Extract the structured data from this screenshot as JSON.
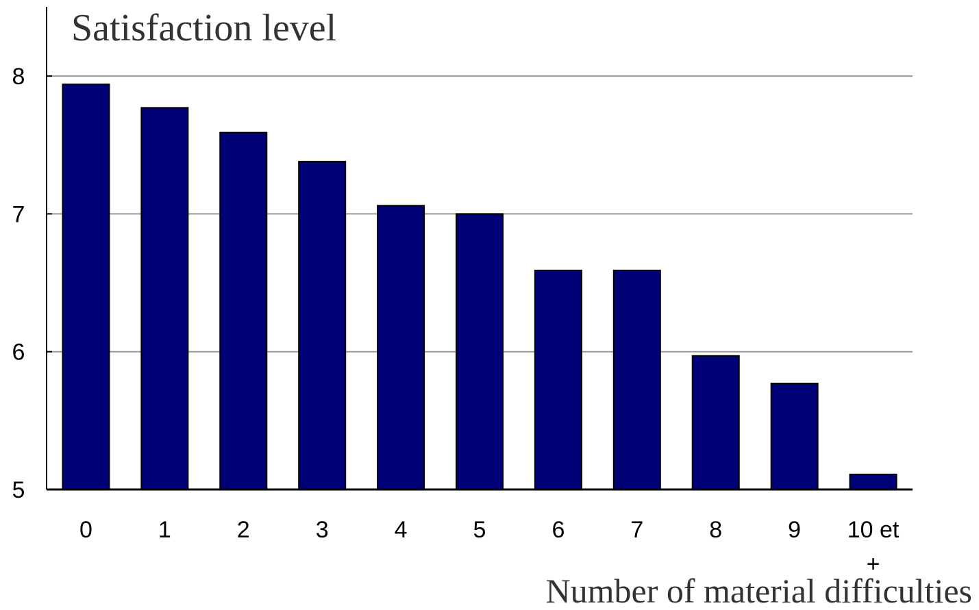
{
  "chart_data": {
    "type": "bar",
    "ylabel": "Satisfaction level",
    "xlabel": "Number of material difficulties",
    "categories": [
      "0",
      "1",
      "2",
      "3",
      "4",
      "5",
      "6",
      "7",
      "8",
      "9",
      "10 et +"
    ],
    "values": [
      7.94,
      7.77,
      7.59,
      7.38,
      7.06,
      7.0,
      6.59,
      6.59,
      5.97,
      5.77,
      5.11
    ],
    "ylim": [
      5,
      8.5
    ],
    "yticks": [
      "5",
      "6",
      "7",
      "8"
    ],
    "grid": true,
    "colors": {
      "bar": "#000077",
      "bar_stroke": "#000000",
      "grid": "#999999",
      "axis": "#000000"
    }
  }
}
